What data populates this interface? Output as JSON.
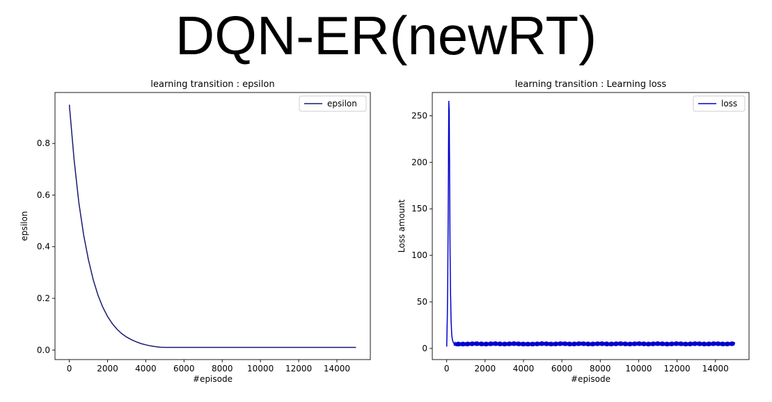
{
  "figure_title": "DQN-ER(newRT)",
  "colors": {
    "epsilon_line": "#191970",
    "loss_line": "#0000cd"
  },
  "chart_data": [
    {
      "type": "line",
      "title": "learning transition : epsilon",
      "xlabel": "#episode",
      "ylabel": "epsilon",
      "xlim": [
        -750,
        15750
      ],
      "ylim": [
        -0.037,
        0.997
      ],
      "xticks": [
        0,
        2000,
        4000,
        6000,
        8000,
        10000,
        12000,
        14000
      ],
      "xtick_labels": [
        "0",
        "2000",
        "4000",
        "6000",
        "8000",
        "10000",
        "12000",
        "14000"
      ],
      "yticks": [
        0.0,
        0.2,
        0.4,
        0.6,
        0.8
      ],
      "ytick_labels": [
        "0.0",
        "0.2",
        "0.4",
        "0.6",
        "0.8"
      ],
      "grid": false,
      "legend": "top-right",
      "series": [
        {
          "name": "epsilon",
          "x": [
            0,
            250,
            500,
            750,
            1000,
            1250,
            1500,
            1750,
            2000,
            2250,
            2500,
            2750,
            3000,
            3250,
            3500,
            3750,
            4000,
            4250,
            4500,
            4750,
            5000,
            6000,
            8000,
            10000,
            12000,
            14000,
            15000
          ],
          "y": [
            0.95,
            0.735,
            0.57,
            0.445,
            0.35,
            0.272,
            0.212,
            0.166,
            0.13,
            0.102,
            0.08,
            0.063,
            0.05,
            0.04,
            0.032,
            0.025,
            0.02,
            0.016,
            0.013,
            0.011,
            0.01,
            0.01,
            0.01,
            0.01,
            0.01,
            0.01,
            0.01
          ]
        }
      ]
    },
    {
      "type": "line",
      "title": "learning transition : Learning loss",
      "xlabel": "#episode",
      "ylabel": "Loss amount",
      "xlim": [
        -750,
        15750
      ],
      "ylim": [
        -12,
        275
      ],
      "xticks": [
        0,
        2000,
        4000,
        6000,
        8000,
        10000,
        12000,
        14000
      ],
      "xtick_labels": [
        "0",
        "2000",
        "4000",
        "6000",
        "8000",
        "10000",
        "12000",
        "14000"
      ],
      "yticks": [
        0,
        50,
        100,
        150,
        200,
        250
      ],
      "ytick_labels": [
        "0",
        "50",
        "100",
        "150",
        "200",
        "250"
      ],
      "grid": false,
      "legend": "top-right",
      "series": [
        {
          "name": "loss",
          "x": [
            0,
            30,
            60,
            90,
            110,
            130,
            150,
            170,
            200,
            230,
            260,
            300,
            350,
            400,
            500,
            700,
            1000,
            1500,
            2000,
            2500,
            3000,
            3500,
            4000,
            4500,
            5000,
            5500,
            6000,
            6500,
            7000,
            7500,
            8000,
            8500,
            9000,
            9500,
            10000,
            10500,
            11000,
            11500,
            12000,
            12500,
            13000,
            13500,
            14000,
            14500,
            15000
          ],
          "y": [
            2,
            30,
            80,
            190,
            266,
            255,
            200,
            120,
            60,
            30,
            15,
            9,
            6,
            5,
            4.5,
            4.5,
            4.5,
            5,
            4.5,
            5,
            4.5,
            5,
            4.5,
            4.5,
            5,
            4.5,
            5,
            4.5,
            5,
            4.5,
            5,
            4.5,
            5,
            4.5,
            5,
            4.5,
            5,
            4.5,
            5,
            4.5,
            5,
            4.5,
            5,
            4.5,
            5
          ]
        }
      ]
    }
  ]
}
